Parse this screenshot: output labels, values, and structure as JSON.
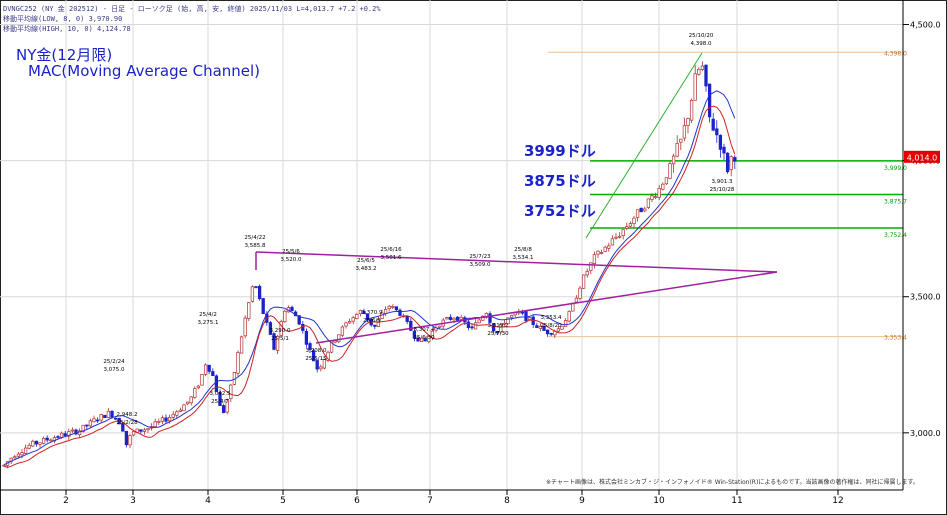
{
  "header": {
    "line1": "DVNGC252 (NY 金 202512) - 日足 - ローソク足 (始, 高, 安, 終値)   2025/11/03  L=4,013.7  +7.2  +0.2%",
    "line2": "移動平均線(LOW, 8, 0) 3,970.90",
    "line3": "移動平均線(HIGH, 10, 0) 4,124.78"
  },
  "title": {
    "line1": "NY金(12月限)",
    "line2": "MAC(Moving Average Channel)"
  },
  "levels": [
    {
      "label": "3999ドル",
      "value": 3999.0,
      "tag": "3,999.0"
    },
    {
      "label": "3875ドル",
      "value": 3875.7,
      "tag": "3,875.7"
    },
    {
      "label": "3752ドル",
      "value": 3752.4,
      "tag": "3,752.4"
    }
  ],
  "fib_levels": [
    {
      "value": 4398.0,
      "tag": "4,398.0"
    },
    {
      "value": 3353.4,
      "tag": "3,353.4"
    }
  ],
  "last_price": {
    "value": 4014.0,
    "tag": "4,014.0"
  },
  "footnote": "※チャート画像は、株式会社ミンカブ・ジ・インフォノイド® Win-Station(R)によるものです。当該画像の著作権は、同社に帰属します。",
  "colors": {
    "candle_up": "#b03030",
    "candle_down": "#1a23c8",
    "ma_high": "#2233cc",
    "ma_low": "#cc2222",
    "level_line": "#00b000",
    "triangle": "#a020a0",
    "trend": "#30b030",
    "fib": "#f0c090",
    "price_tag": "#e00000",
    "title": "#1a23c8"
  },
  "chart_data": {
    "type": "candlestick",
    "y_axis": {
      "ticks": [
        3000,
        3500,
        4000,
        4500
      ],
      "tick_labels": [
        "3,000.0",
        "3,500.0",
        "4,000.0",
        "4,500.0"
      ],
      "ylim": [
        2790,
        4590
      ]
    },
    "x_axis": {
      "ticks": [
        "2",
        "3",
        "4",
        "5",
        "6",
        "7",
        "8",
        "9",
        "10",
        "11",
        "12"
      ]
    },
    "annotations": [
      {
        "date": "25/2/24",
        "value": "3,075.0",
        "pos": "high"
      },
      {
        "date": "25/2/28",
        "value": "2,948.2",
        "pos": "low"
      },
      {
        "date": "25/4/2",
        "value": "3,275.1",
        "pos": "high"
      },
      {
        "date": "25/4/7",
        "value": "3,042.5",
        "pos": "low"
      },
      {
        "date": "25/4/22",
        "value": "3,585.8",
        "pos": "high"
      },
      {
        "date": "25/5/1",
        "value": "3,290.0",
        "pos": "low"
      },
      {
        "date": "25/5/6",
        "value": "3,520.0",
        "pos": "high"
      },
      {
        "date": "25/5/15",
        "value": "3,208.0",
        "pos": "low"
      },
      {
        "date": "25/6/5",
        "value": "3,483.2",
        "pos": "high"
      },
      {
        "date": "25/6/9",
        "value": "3,370.9",
        "pos": "low"
      },
      {
        "date": "25/6/16",
        "value": "3,501.6",
        "pos": "high"
      },
      {
        "date": "25/6/30",
        "value": "3,307.4",
        "pos": "low"
      },
      {
        "date": "25/7/23",
        "value": "3,509.0",
        "pos": "high"
      },
      {
        "date": "25/7/30",
        "value": "3,319.2",
        "pos": "low"
      },
      {
        "date": "25/8/8",
        "value": "3,534.1",
        "pos": "high"
      },
      {
        "date": "25/8/20",
        "value": "3,353.4",
        "pos": "low"
      },
      {
        "date": "25/10/20",
        "value": "4,398.0",
        "pos": "high"
      },
      {
        "date": "25/10/28",
        "value": "3,901.3",
        "pos": "low"
      }
    ],
    "series": [
      {
        "kind": "candles",
        "note": "daily OHLC (approx.)"
      },
      {
        "name": "移動平均線(HIGH, 10, 0)",
        "last": 4124.78
      },
      {
        "name": "移動平均線(LOW, 8, 0)",
        "last": 3970.9
      }
    ],
    "anchors": [
      {
        "x": 4,
        "y": 2880
      },
      {
        "x": 14,
        "y": 2920
      },
      {
        "x": 30,
        "y": 2955
      },
      {
        "x": 55,
        "y": 2985
      },
      {
        "x": 80,
        "y": 3010
      },
      {
        "x": 96,
        "y": 3050
      },
      {
        "x": 110,
        "y": 3075
      },
      {
        "x": 122,
        "y": 3030
      },
      {
        "x": 126,
        "y": 2955
      },
      {
        "x": 132,
        "y": 3000
      },
      {
        "x": 150,
        "y": 3020
      },
      {
        "x": 170,
        "y": 3060
      },
      {
        "x": 190,
        "y": 3120
      },
      {
        "x": 200,
        "y": 3190
      },
      {
        "x": 206,
        "y": 3260
      },
      {
        "x": 214,
        "y": 3200
      },
      {
        "x": 222,
        "y": 3060
      },
      {
        "x": 232,
        "y": 3180
      },
      {
        "x": 244,
        "y": 3400
      },
      {
        "x": 254,
        "y": 3560
      },
      {
        "x": 264,
        "y": 3430
      },
      {
        "x": 274,
        "y": 3310
      },
      {
        "x": 286,
        "y": 3470
      },
      {
        "x": 298,
        "y": 3420
      },
      {
        "x": 310,
        "y": 3300
      },
      {
        "x": 318,
        "y": 3230
      },
      {
        "x": 332,
        "y": 3330
      },
      {
        "x": 348,
        "y": 3410
      },
      {
        "x": 362,
        "y": 3450
      },
      {
        "x": 374,
        "y": 3385
      },
      {
        "x": 388,
        "y": 3470
      },
      {
        "x": 400,
        "y": 3440
      },
      {
        "x": 414,
        "y": 3360
      },
      {
        "x": 424,
        "y": 3330
      },
      {
        "x": 438,
        "y": 3400
      },
      {
        "x": 456,
        "y": 3430
      },
      {
        "x": 472,
        "y": 3380
      },
      {
        "x": 486,
        "y": 3450
      },
      {
        "x": 496,
        "y": 3360
      },
      {
        "x": 506,
        "y": 3420
      },
      {
        "x": 520,
        "y": 3440
      },
      {
        "x": 534,
        "y": 3400
      },
      {
        "x": 546,
        "y": 3370
      },
      {
        "x": 558,
        "y": 3380
      },
      {
        "x": 570,
        "y": 3440
      },
      {
        "x": 582,
        "y": 3560
      },
      {
        "x": 594,
        "y": 3640
      },
      {
        "x": 608,
        "y": 3690
      },
      {
        "x": 622,
        "y": 3740
      },
      {
        "x": 636,
        "y": 3800
      },
      {
        "x": 648,
        "y": 3850
      },
      {
        "x": 660,
        "y": 3900
      },
      {
        "x": 672,
        "y": 3990
      },
      {
        "x": 682,
        "y": 4080
      },
      {
        "x": 690,
        "y": 4200
      },
      {
        "x": 697,
        "y": 4330
      },
      {
        "x": 703,
        "y": 4340
      },
      {
        "x": 709,
        "y": 4160
      },
      {
        "x": 715,
        "y": 4110
      },
      {
        "x": 721,
        "y": 4060
      },
      {
        "x": 727,
        "y": 3960
      },
      {
        "x": 733,
        "y": 4030
      },
      {
        "x": 738,
        "y": 4014
      }
    ]
  }
}
